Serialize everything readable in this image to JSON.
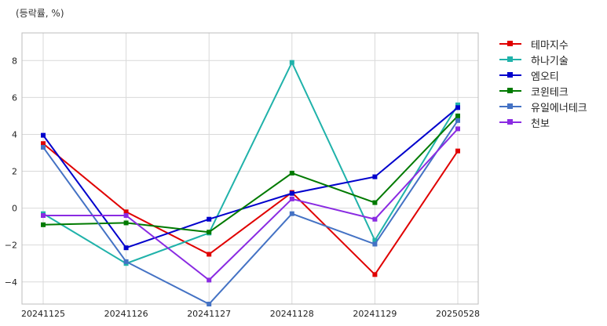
{
  "unit_label": "(등락률, %)",
  "chart_data": {
    "type": "line",
    "title": "",
    "xlabel": "",
    "ylabel": "(등락률, %)",
    "categories": [
      "20241125",
      "20241126",
      "20241127",
      "20241128",
      "20241129",
      "20250528"
    ],
    "ylim": [
      -5.2,
      9.5
    ],
    "yticks": [
      -4,
      -2,
      0,
      2,
      4,
      6,
      8
    ],
    "grid": true,
    "legend_position": "outside-right",
    "series": [
      {
        "name": "테마지수",
        "color": "#e00000",
        "values": [
          3.5,
          -0.2,
          -2.5,
          0.85,
          -3.6,
          3.1
        ]
      },
      {
        "name": "하나기술",
        "color": "#20b2aa",
        "values": [
          -0.3,
          -3.0,
          -1.35,
          7.9,
          -1.75,
          5.6
        ]
      },
      {
        "name": "엠오티",
        "color": "#0000cc",
        "values": [
          3.95,
          -2.15,
          -0.6,
          0.8,
          1.7,
          5.45
        ]
      },
      {
        "name": "코윈테크",
        "color": "#007a00",
        "values": [
          -0.9,
          -0.8,
          -1.3,
          1.9,
          0.3,
          5.0
        ]
      },
      {
        "name": "유일에너테크",
        "color": "#4472c4",
        "values": [
          3.3,
          -2.9,
          -5.2,
          -0.3,
          -1.95,
          4.75
        ]
      },
      {
        "name": "천보",
        "color": "#8a2be2",
        "values": [
          -0.4,
          -0.4,
          -3.9,
          0.5,
          -0.6,
          4.3
        ]
      }
    ]
  }
}
